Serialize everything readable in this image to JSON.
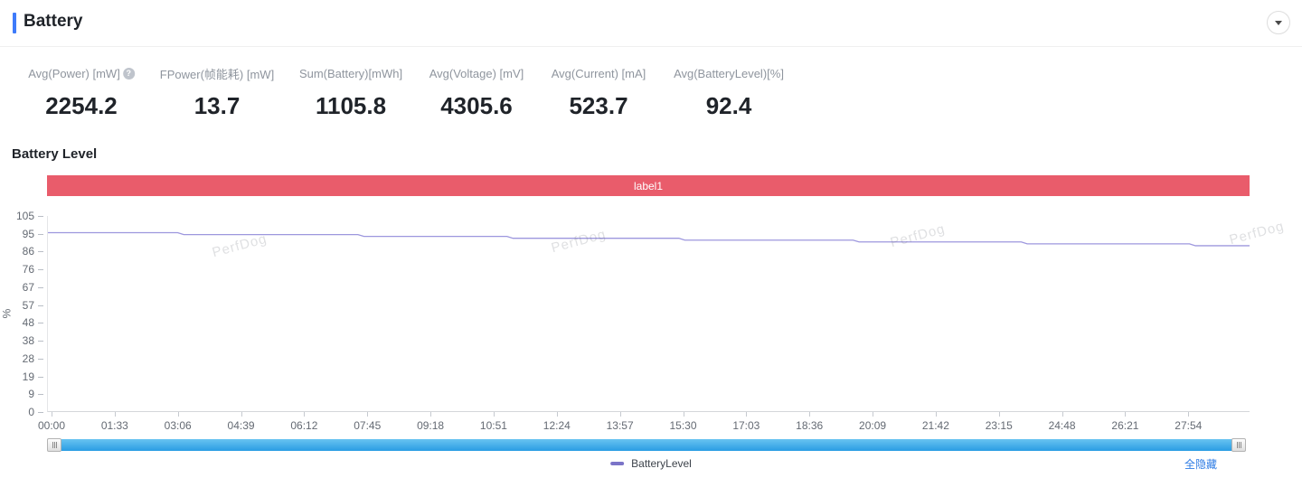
{
  "header": {
    "title": "Battery"
  },
  "metrics": [
    {
      "label": "Avg(Power) [mW]",
      "value": "2254.2",
      "has_help": true
    },
    {
      "label": "FPower(帧能耗) [mW]",
      "value": "13.7",
      "has_help": false
    },
    {
      "label": "Sum(Battery)[mWh]",
      "value": "1105.8",
      "has_help": false
    },
    {
      "label": "Avg(Voltage) [mV]",
      "value": "4305.6",
      "has_help": false
    },
    {
      "label": "Avg(Current) [mA]",
      "value": "523.7",
      "has_help": false
    },
    {
      "label": "Avg(BatteryLevel)[%]",
      "value": "92.4",
      "has_help": false
    }
  ],
  "chart": {
    "title": "Battery Level",
    "banner_label": "label1",
    "banner_color": "#e95c6b"
  },
  "chart_data": {
    "type": "line",
    "title": "Battery Level",
    "xlabel": "",
    "ylabel": "%",
    "ylim": [
      0,
      105
    ],
    "grid": false,
    "y_ticks": [
      105,
      95,
      86,
      76,
      67,
      57,
      48,
      38,
      28,
      19,
      9,
      0
    ],
    "x_ticks": [
      "00:00",
      "01:33",
      "03:06",
      "04:39",
      "06:12",
      "07:45",
      "09:18",
      "10:51",
      "12:24",
      "13:57",
      "15:30",
      "17:03",
      "18:36",
      "20:09",
      "21:42",
      "23:15",
      "24:48",
      "26:21",
      "27:54"
    ],
    "legend": [
      {
        "name": "BatteryLevel",
        "color": "#7b74c8"
      }
    ],
    "legend_position": "bottom-center",
    "annotations": [
      {
        "label": "label1",
        "color": "#e95c6b",
        "position": "top-band"
      }
    ],
    "series": [
      {
        "name": "BatteryLevel",
        "color": "#9d97de",
        "points": [
          [
            0.0,
            96
          ],
          [
            0.108,
            96
          ],
          [
            0.113,
            95
          ],
          [
            0.258,
            95
          ],
          [
            0.263,
            94
          ],
          [
            0.382,
            94
          ],
          [
            0.387,
            93
          ],
          [
            0.525,
            93
          ],
          [
            0.53,
            92
          ],
          [
            0.67,
            92
          ],
          [
            0.675,
            91
          ],
          [
            0.81,
            91
          ],
          [
            0.815,
            90
          ],
          [
            0.95,
            90
          ],
          [
            0.955,
            89
          ],
          [
            1.0,
            89
          ]
        ]
      }
    ]
  },
  "watermark": {
    "text": "PerfDog"
  },
  "footer": {
    "legend_label": "BatteryLevel",
    "hide_all_label": "全隐藏"
  }
}
